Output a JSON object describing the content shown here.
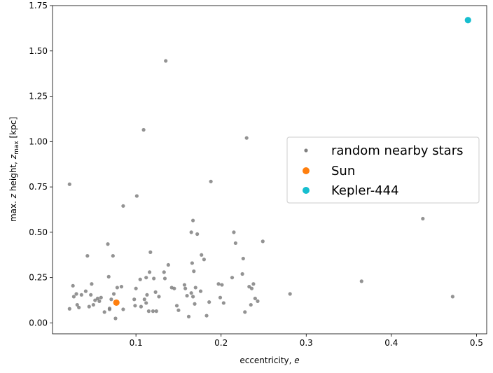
{
  "chart_data": {
    "type": "scatter",
    "title": "",
    "xlabel": "eccentricity, e",
    "ylabel": "max. z height, z_max [kpc]",
    "xlim": [
      0.002,
      0.512
    ],
    "ylim": [
      -0.06,
      1.75
    ],
    "grid": false,
    "legend_placement": "center-right",
    "x_ticks": [
      {
        "value": 0.1,
        "label": "0.1"
      },
      {
        "value": 0.2,
        "label": "0.2"
      },
      {
        "value": 0.3,
        "label": "0.3"
      },
      {
        "value": 0.4,
        "label": "0.4"
      },
      {
        "value": 0.5,
        "label": "0.5"
      }
    ],
    "y_ticks": [
      {
        "value": 0.0,
        "label": "0.00"
      },
      {
        "value": 0.25,
        "label": "0.25"
      },
      {
        "value": 0.5,
        "label": "0.50"
      },
      {
        "value": 0.75,
        "label": "0.75"
      },
      {
        "value": 1.0,
        "label": "1.00"
      },
      {
        "value": 1.25,
        "label": "1.25"
      },
      {
        "value": 1.5,
        "label": "1.50"
      },
      {
        "value": 1.75,
        "label": "1.75"
      }
    ],
    "series": [
      {
        "name": "random nearby stars",
        "color": "#808080",
        "marker": "small-dot",
        "points": [
          [
            0.022,
            0.765
          ],
          [
            0.022,
            0.078
          ],
          [
            0.026,
            0.205
          ],
          [
            0.027,
            0.145
          ],
          [
            0.03,
            0.16
          ],
          [
            0.031,
            0.1
          ],
          [
            0.033,
            0.085
          ],
          [
            0.036,
            0.155
          ],
          [
            0.041,
            0.175
          ],
          [
            0.043,
            0.37
          ],
          [
            0.045,
            0.09
          ],
          [
            0.047,
            0.155
          ],
          [
            0.048,
            0.215
          ],
          [
            0.05,
            0.1
          ],
          [
            0.052,
            0.125
          ],
          [
            0.055,
            0.135
          ],
          [
            0.057,
            0.12
          ],
          [
            0.059,
            0.14
          ],
          [
            0.063,
            0.06
          ],
          [
            0.067,
            0.435
          ],
          [
            0.068,
            0.255
          ],
          [
            0.069,
            0.075
          ],
          [
            0.069,
            0.08
          ],
          [
            0.071,
            0.13
          ],
          [
            0.073,
            0.37
          ],
          [
            0.074,
            0.16
          ],
          [
            0.076,
            0.025
          ],
          [
            0.078,
            0.195
          ],
          [
            0.083,
            0.2
          ],
          [
            0.085,
            0.645
          ],
          [
            0.085,
            0.075
          ],
          [
            0.098,
            0.13
          ],
          [
            0.099,
            0.095
          ],
          [
            0.1,
            0.19
          ],
          [
            0.101,
            0.7
          ],
          [
            0.105,
            0.24
          ],
          [
            0.106,
            0.09
          ],
          [
            0.109,
            1.065
          ],
          [
            0.11,
            0.13
          ],
          [
            0.112,
            0.25
          ],
          [
            0.112,
            0.11
          ],
          [
            0.113,
            0.155
          ],
          [
            0.115,
            0.065
          ],
          [
            0.116,
            0.28
          ],
          [
            0.117,
            0.39
          ],
          [
            0.12,
            0.065
          ],
          [
            0.121,
            0.245
          ],
          [
            0.123,
            0.17
          ],
          [
            0.124,
            0.065
          ],
          [
            0.127,
            0.145
          ],
          [
            0.133,
            0.28
          ],
          [
            0.134,
            0.245
          ],
          [
            0.135,
            1.445
          ],
          [
            0.138,
            0.32
          ],
          [
            0.142,
            0.195
          ],
          [
            0.145,
            0.19
          ],
          [
            0.148,
            0.095
          ],
          [
            0.15,
            0.07
          ],
          [
            0.157,
            0.21
          ],
          [
            0.158,
            0.19
          ],
          [
            0.16,
            0.15
          ],
          [
            0.162,
            0.035
          ],
          [
            0.165,
            0.5
          ],
          [
            0.165,
            0.165
          ],
          [
            0.166,
            0.33
          ],
          [
            0.167,
            0.565
          ],
          [
            0.167,
            0.145
          ],
          [
            0.168,
            0.285
          ],
          [
            0.169,
            0.105
          ],
          [
            0.17,
            0.195
          ],
          [
            0.172,
            0.49
          ],
          [
            0.176,
            0.175
          ],
          [
            0.177,
            0.375
          ],
          [
            0.18,
            0.35
          ],
          [
            0.183,
            0.04
          ],
          [
            0.186,
            0.115
          ],
          [
            0.188,
            0.78
          ],
          [
            0.197,
            0.215
          ],
          [
            0.199,
            0.14
          ],
          [
            0.201,
            0.21
          ],
          [
            0.203,
            0.11
          ],
          [
            0.213,
            0.25
          ],
          [
            0.215,
            0.5
          ],
          [
            0.217,
            0.44
          ],
          [
            0.225,
            0.27
          ],
          [
            0.226,
            0.355
          ],
          [
            0.228,
            0.06
          ],
          [
            0.23,
            1.02
          ],
          [
            0.233,
            0.2
          ],
          [
            0.235,
            0.1
          ],
          [
            0.236,
            0.19
          ],
          [
            0.238,
            0.215
          ],
          [
            0.24,
            0.135
          ],
          [
            0.243,
            0.12
          ],
          [
            0.249,
            0.45
          ],
          [
            0.281,
            0.16
          ],
          [
            0.365,
            0.23
          ],
          [
            0.437,
            0.575
          ],
          [
            0.472,
            0.145
          ]
        ]
      },
      {
        "name": "Sun",
        "color": "#ff7f0e",
        "marker": "dot",
        "points": [
          [
            0.077,
            0.112
          ]
        ]
      },
      {
        "name": "Kepler-444",
        "color": "#17becf",
        "marker": "dot",
        "points": [
          [
            0.49,
            1.67
          ]
        ]
      }
    ]
  }
}
